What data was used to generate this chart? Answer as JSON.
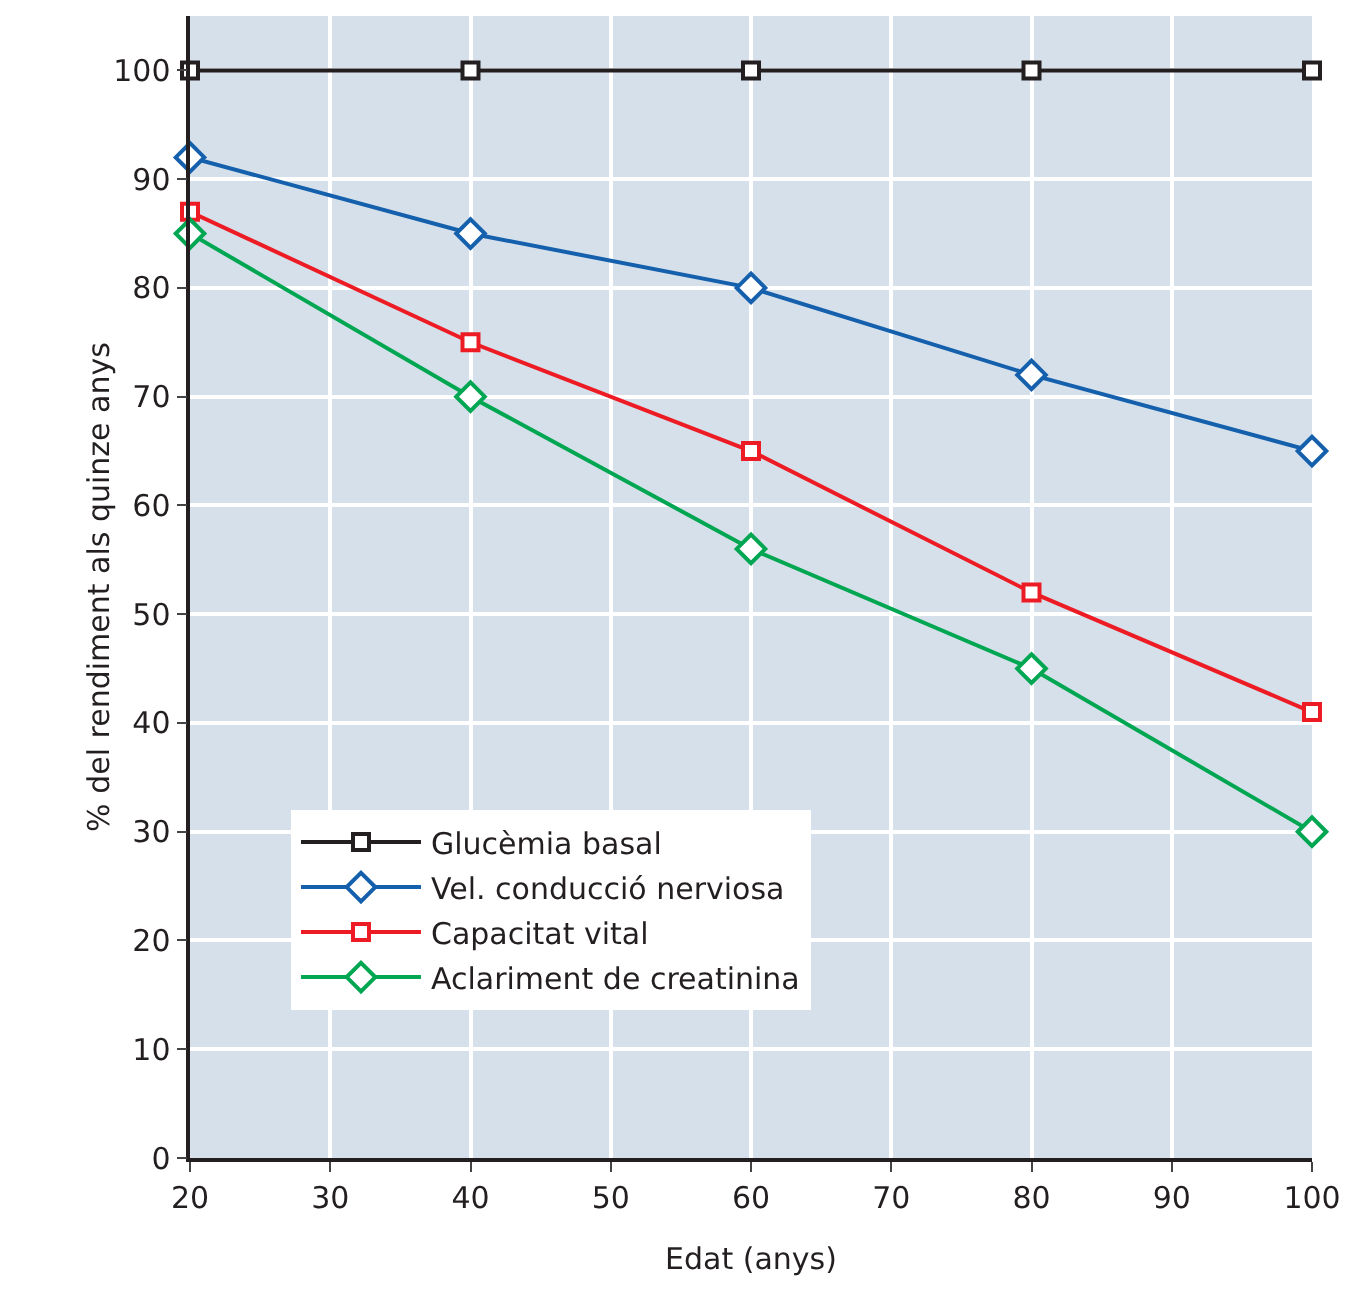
{
  "chart_data": {
    "type": "line",
    "xlabel": "Edat (anys)",
    "ylabel": "% del rendiment als quinze anys",
    "x": [
      20,
      40,
      60,
      80,
      100
    ],
    "series": [
      {
        "name": "Glucèmia basal",
        "color": "#231f20",
        "marker": "square",
        "values": [
          100,
          100,
          100,
          100,
          100
        ]
      },
      {
        "name": "Vel. conducció nerviosa",
        "color": "#1560ad",
        "marker": "diamond",
        "values": [
          92,
          85,
          80,
          72,
          65
        ]
      },
      {
        "name": "Capacitat vital",
        "color": "#ed1c24",
        "marker": "square",
        "values": [
          87,
          75,
          65,
          52,
          41
        ]
      },
      {
        "name": "Aclariment de creatinina",
        "color": "#00a651",
        "marker": "diamond",
        "values": [
          85,
          70,
          56,
          45,
          30
        ]
      }
    ],
    "xlim": [
      20,
      100
    ],
    "xticks": [
      20,
      30,
      40,
      50,
      60,
      70,
      80,
      90,
      100
    ],
    "ylim": [
      0,
      105
    ],
    "yticks": [
      0,
      10,
      20,
      30,
      40,
      50,
      60,
      70,
      80,
      90,
      100
    ],
    "grid": true,
    "legend": "bottom left",
    "line_style": "solid"
  }
}
